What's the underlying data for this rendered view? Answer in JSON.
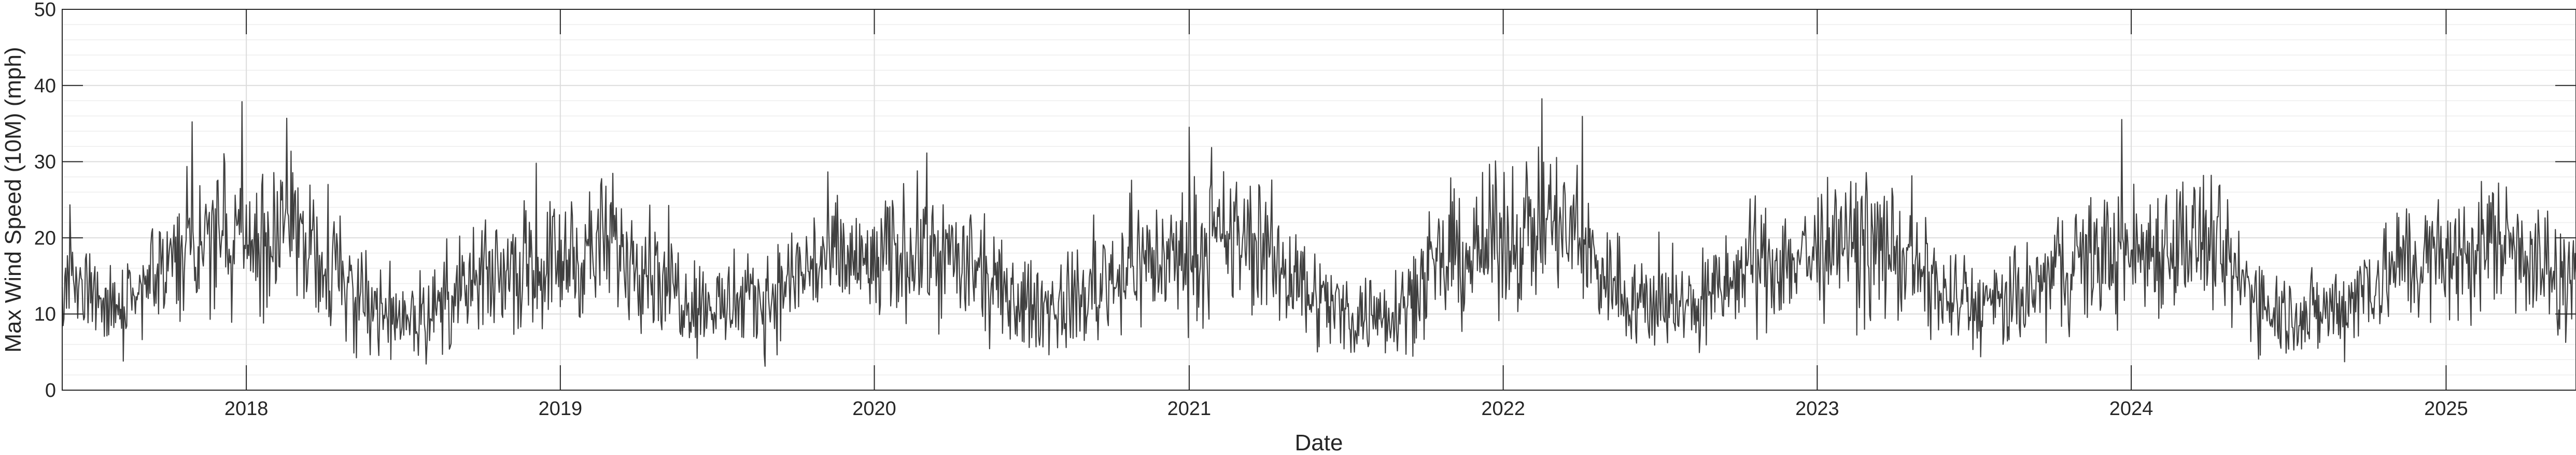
{
  "chart_data": {
    "type": "line",
    "title": "",
    "xlabel": "Date",
    "ylabel": "Max Wind Speed (10M) (mph)",
    "ylim": [
      0,
      50
    ],
    "yticks": [
      0,
      10,
      20,
      30,
      40,
      50
    ],
    "xlim": [
      "2017-06-01",
      "2025-06-01"
    ],
    "xticks": [
      {
        "date": "2018-01-01",
        "label": "2018"
      },
      {
        "date": "2019-01-01",
        "label": "2019"
      },
      {
        "date": "2020-01-01",
        "label": "2020"
      },
      {
        "date": "2021-01-01",
        "label": "2021"
      },
      {
        "date": "2022-01-01",
        "label": "2022"
      },
      {
        "date": "2023-01-01",
        "label": "2023"
      },
      {
        "date": "2024-01-01",
        "label": "2024"
      },
      {
        "date": "2025-01-01",
        "label": "2025"
      }
    ],
    "grid": true,
    "minor_grid": true,
    "line_color": "#404040",
    "series": [
      {
        "name": "",
        "x": [
          "2017-06-01",
          "2017-07-01",
          "2017-08-01",
          "2017-09-01",
          "2017-10-01",
          "2017-11-01",
          "2017-12-01",
          "2018-01-01",
          "2018-02-01",
          "2018-03-01",
          "2018-04-01",
          "2018-05-01",
          "2018-06-01",
          "2018-07-01",
          "2018-08-01",
          "2018-09-01",
          "2018-10-01",
          "2018-11-01",
          "2018-12-01",
          "2019-01-01",
          "2019-02-01",
          "2019-03-01",
          "2019-04-01",
          "2019-05-01",
          "2019-06-01",
          "2019-07-01",
          "2019-08-01",
          "2019-09-01",
          "2019-10-01",
          "2019-11-01",
          "2019-12-01",
          "2020-01-01",
          "2020-02-01",
          "2020-03-01",
          "2020-04-01",
          "2020-05-01",
          "2020-06-01",
          "2020-07-01",
          "2020-08-01",
          "2020-09-01",
          "2020-10-01",
          "2020-11-01",
          "2020-12-01",
          "2021-01-01",
          "2021-02-01",
          "2021-03-01",
          "2021-04-01",
          "2021-05-01",
          "2021-06-01",
          "2021-07-01",
          "2021-08-01",
          "2021-09-01",
          "2021-10-01",
          "2021-11-01",
          "2021-12-01",
          "2022-01-01",
          "2022-02-01",
          "2022-03-01",
          "2022-04-01",
          "2022-05-01",
          "2022-06-01",
          "2022-07-01",
          "2022-08-01",
          "2022-09-01",
          "2022-10-01",
          "2022-11-01",
          "2022-12-01",
          "2023-01-01",
          "2023-02-01",
          "2023-03-01",
          "2023-04-01",
          "2023-05-01",
          "2023-06-01",
          "2023-07-01",
          "2023-08-01",
          "2023-09-01",
          "2023-10-01",
          "2023-11-01",
          "2023-12-01",
          "2024-01-01",
          "2024-02-01",
          "2024-03-01",
          "2024-04-01",
          "2024-05-01",
          "2024-06-01",
          "2024-07-01",
          "2024-08-01",
          "2024-09-01",
          "2024-10-01",
          "2024-11-01",
          "2024-12-01",
          "2025-01-01",
          "2025-02-01",
          "2025-03-01",
          "2025-04-01",
          "2025-05-01",
          "2025-06-01"
        ],
        "y": [
          15,
          12,
          11,
          12,
          16,
          19,
          20,
          19,
          20,
          21,
          18,
          14,
          11,
          10,
          10,
          12,
          14,
          16,
          16,
          17,
          18,
          19,
          18,
          15,
          12,
          11,
          11,
          12,
          15,
          17,
          17,
          16,
          18,
          19,
          17,
          15,
          12,
          11,
          11,
          12,
          15,
          17,
          17,
          18,
          19,
          20,
          18,
          15,
          12,
          10,
          10,
          11,
          14,
          17,
          18,
          20,
          21,
          22,
          19,
          15,
          12,
          11,
          11,
          12,
          15,
          17,
          17,
          18,
          19,
          19,
          18,
          15,
          12,
          11,
          11,
          12,
          15,
          17,
          18,
          18,
          19,
          20,
          19,
          15,
          12,
          10,
          10,
          11,
          14,
          16,
          17,
          17,
          18,
          20,
          19,
          15,
          13
        ],
        "daily_range": [
          0,
          41
        ]
      }
    ]
  }
}
